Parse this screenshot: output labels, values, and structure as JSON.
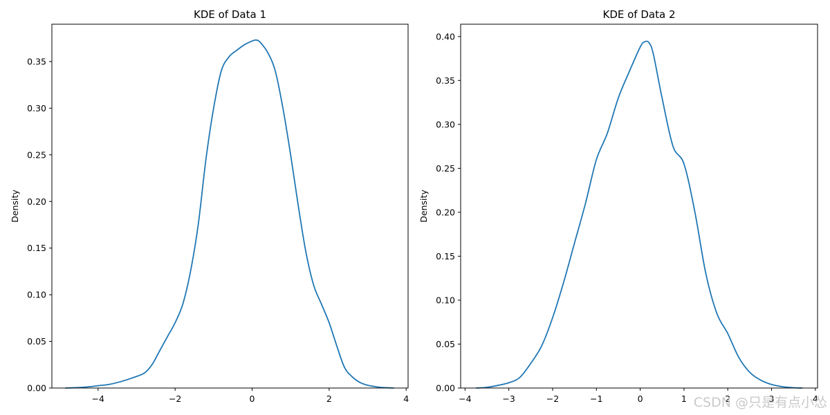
{
  "chart_data": [
    {
      "type": "line",
      "title": "KDE of Data 1",
      "xlabel": "",
      "ylabel": "Density",
      "xlim": [
        -5.2,
        4.05
      ],
      "ylim": [
        0,
        0.39
      ],
      "xticks": [
        -4,
        -2,
        0,
        2,
        4
      ],
      "xtick_labels": [
        "−4",
        "−2",
        "0",
        "2",
        "4"
      ],
      "yticks": [
        0,
        0.05,
        0.1,
        0.15,
        0.2,
        0.25,
        0.3,
        0.35
      ],
      "ytick_labels": [
        "0.00",
        "0.05",
        "0.10",
        "0.15",
        "0.20",
        "0.25",
        "0.30",
        "0.35"
      ],
      "grid": false,
      "color": "#1f77b4",
      "series": [
        {
          "x": [
            -4.85,
            -4.5,
            -4.2,
            -4.0,
            -3.7,
            -3.4,
            -3.1,
            -2.8,
            -2.6,
            -2.4,
            -2.2,
            -2.0,
            -1.8,
            -1.6,
            -1.4,
            -1.2,
            -1.0,
            -0.8,
            -0.6,
            -0.4,
            -0.2,
            0.0,
            0.1,
            0.2,
            0.4,
            0.6,
            0.8,
            1.0,
            1.2,
            1.4,
            1.6,
            1.8,
            2.0,
            2.2,
            2.4,
            2.6,
            2.8,
            3.0,
            3.2,
            3.4,
            3.68
          ],
          "y": [
            0.0,
            0.0005,
            0.0015,
            0.0025,
            0.004,
            0.007,
            0.011,
            0.016,
            0.025,
            0.04,
            0.055,
            0.07,
            0.09,
            0.125,
            0.175,
            0.245,
            0.3,
            0.34,
            0.355,
            0.362,
            0.368,
            0.372,
            0.373,
            0.371,
            0.36,
            0.34,
            0.3,
            0.25,
            0.195,
            0.145,
            0.11,
            0.09,
            0.07,
            0.045,
            0.022,
            0.012,
            0.006,
            0.003,
            0.0015,
            0.0005,
            0.0
          ]
        }
      ]
    },
    {
      "type": "line",
      "title": "KDE of Data 2",
      "xlabel": "",
      "ylabel": "Density",
      "xlim": [
        -4.1,
        4.05
      ],
      "ylim": [
        0,
        0.414
      ],
      "xticks": [
        -4,
        -3,
        -2,
        -1,
        0,
        1,
        2,
        3,
        4
      ],
      "xtick_labels": [
        "−4",
        "−3",
        "−2",
        "−1",
        "0",
        "1",
        "2",
        "3",
        "4"
      ],
      "yticks": [
        0,
        0.05,
        0.1,
        0.15,
        0.2,
        0.25,
        0.3,
        0.35,
        0.4
      ],
      "ytick_labels": [
        "0.00",
        "0.05",
        "0.10",
        "0.15",
        "0.20",
        "0.25",
        "0.30",
        "0.35",
        "0.40"
      ],
      "grid": false,
      "color": "#1f77b4",
      "series": [
        {
          "x": [
            -3.75,
            -3.5,
            -3.25,
            -3.0,
            -2.75,
            -2.5,
            -2.25,
            -2.0,
            -1.75,
            -1.5,
            -1.25,
            -1.0,
            -0.75,
            -0.5,
            -0.25,
            0.0,
            0.1,
            0.2,
            0.3,
            0.5,
            0.75,
            1.0,
            1.25,
            1.5,
            1.75,
            2.0,
            2.25,
            2.5,
            2.75,
            3.0,
            3.25,
            3.5,
            3.7
          ],
          "y": [
            0.0,
            0.0008,
            0.003,
            0.006,
            0.012,
            0.028,
            0.048,
            0.08,
            0.12,
            0.165,
            0.21,
            0.26,
            0.29,
            0.33,
            0.36,
            0.388,
            0.394,
            0.393,
            0.38,
            0.33,
            0.275,
            0.255,
            0.2,
            0.13,
            0.085,
            0.062,
            0.035,
            0.018,
            0.009,
            0.004,
            0.0015,
            0.0004,
            0.0
          ]
        }
      ]
    }
  ],
  "watermark": "CSDN @只是有点小怂"
}
